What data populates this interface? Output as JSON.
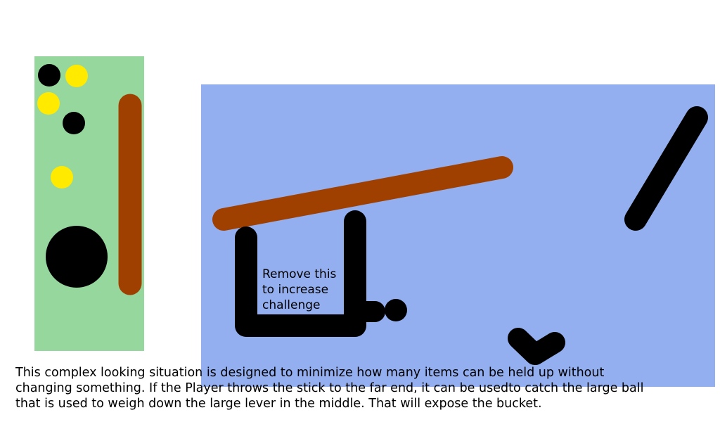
{
  "colors": {
    "background": "#ffffff",
    "inventory_panel": "#96d79e",
    "play_area": "#94aff0",
    "stick": "#a04000",
    "ball_black": "#000000",
    "ball_yellow": "#ffea00",
    "ink": "#000000"
  },
  "diagram": {
    "inventory": {
      "items": [
        "small-black-ball",
        "small-yellow-ball",
        "small-yellow-ball",
        "small-black-ball",
        "small-yellow-ball",
        "large-black-ball",
        "stick"
      ]
    },
    "annotation": "Remove this\nto increase\nchallenge",
    "caption": "This complex looking situation is designed to minimize how many items can be held up without\nchanging something. If the Player throws the stick to the far end, it can be usedto catch the large ball\nthat is used to weigh down the large lever in the middle. That will expose the bucket."
  }
}
